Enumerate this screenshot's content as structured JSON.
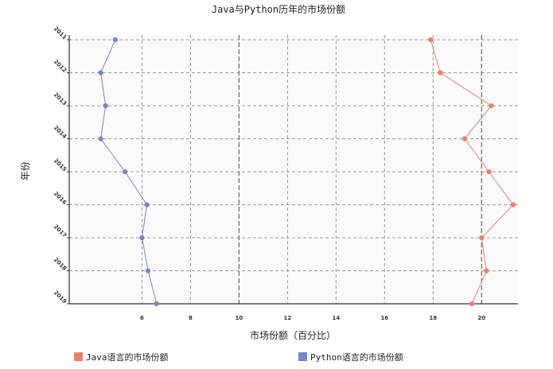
{
  "chart_data": {
    "type": "line",
    "title": "Java与Python历年的市场份额",
    "xlabel": "市场份额（百分比）",
    "ylabel": "年份",
    "xlim": [
      3,
      21.5
    ],
    "xticks": [
      6,
      8,
      10,
      12,
      14,
      16,
      18,
      20
    ],
    "categories": [
      "2011",
      "2012",
      "2013",
      "2014",
      "2015",
      "2016",
      "2017",
      "2018",
      "2019"
    ],
    "grid": true,
    "legend_position": "bottom",
    "series": [
      {
        "name": "Java语言的市场份额",
        "color": "#f07c6c",
        "values": [
          17.9,
          18.3,
          20.4,
          19.3,
          20.3,
          21.3,
          20.0,
          20.2,
          19.6
        ]
      },
      {
        "name": "Python语言的市场份额",
        "color": "#7585cc",
        "values": [
          4.9,
          4.3,
          4.5,
          4.3,
          5.3,
          6.2,
          6.0,
          6.25,
          6.6
        ]
      }
    ]
  }
}
